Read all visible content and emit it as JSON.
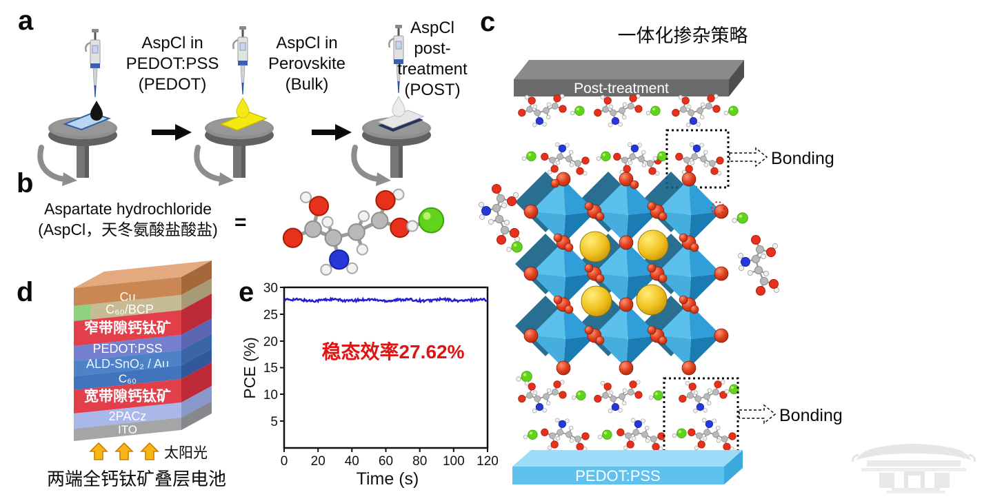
{
  "panel_a": {
    "label": "a",
    "stations": [
      {
        "line1": "AspCl in",
        "line2": "PEDOT:PSS",
        "line3": "(PEDOT)"
      },
      {
        "line1": "AspCl in",
        "line2": "Perovskite",
        "line3": "(Bulk)"
      },
      {
        "line1": "AspCl",
        "line2": "post-",
        "line3": "treatment",
        "line4": "(POST)"
      }
    ]
  },
  "panel_b": {
    "label": "b",
    "name_line1": "Aspartate hydrochloride",
    "name_line2": "(AspCl，天冬氨酸盐酸盐)",
    "equals": "="
  },
  "panel_c": {
    "label": "c",
    "title": "一体化掺杂策略",
    "top_slab": "Post-treatment",
    "bottom_slab": "PEDOT:PSS",
    "bonding_top": "Bonding",
    "bonding_bottom": "Bonding",
    "top_slab_colors": {
      "front": "#6b6b6b",
      "top": "#8a8a8a",
      "side": "#4e4e4e"
    },
    "bottom_slab_colors": {
      "front": "#5ec1ee",
      "top": "#9bdcf8",
      "side": "#3da8dc"
    },
    "octahedron_color": "#2f9ed9",
    "halide_color": "#d23a1a",
    "cation_color": "#f0c01e",
    "chloride_color": "#58cf16"
  },
  "panel_d": {
    "label": "d",
    "layers": [
      {
        "label": "Cu",
        "front": "#c98753",
        "side": "#a5683a",
        "top": "#e2aa7e",
        "text": "#ffffff"
      },
      {
        "label": "C₆₀/BCP",
        "front": "#c6bb94",
        "side": "#a69b75",
        "text": "#ffffff"
      },
      {
        "label": "窄带隙钙钛矿",
        "front": "#e33f4b",
        "side": "#bc2a37",
        "text": "#ffffff"
      },
      {
        "label": "PEDOT:PSS",
        "front": "#7480cf",
        "side": "#5b66b2",
        "text": "#ffffff"
      },
      {
        "label": "ALD-SnO₂ / Au",
        "front": "#4d82c8",
        "side": "#3a66a6",
        "text": "#eaf4ff"
      },
      {
        "label": "C₆₀",
        "front": "#4273bd",
        "side": "#32589c",
        "text": "#ffffff"
      },
      {
        "label": "宽带隙钙钛矿",
        "front": "#e33f4b",
        "side": "#bc2a37",
        "text": "#ffffff"
      },
      {
        "label": "2PACz",
        "front": "#a9b7e9",
        "side": "#8a97cb",
        "text": "#ffffff"
      },
      {
        "label": "ITO",
        "front": "#a3a5a7",
        "side": "#86888b",
        "text": "#ffffff"
      }
    ],
    "sunlight": "太阳光",
    "sun_arrow_color": "#f6b616",
    "caption": "两端全钙钛矿叠层电池"
  },
  "panel_e": {
    "label": "e"
  },
  "chart_data": {
    "type": "line",
    "title": "",
    "xlabel": "Time (s)",
    "ylabel": "PCE (%)",
    "xlim": [
      0,
      120
    ],
    "ylim": [
      0,
      30
    ],
    "xticks": [
      0,
      20,
      40,
      60,
      80,
      100,
      120
    ],
    "yticks": [
      5,
      10,
      15,
      20,
      25,
      30
    ],
    "grid": false,
    "legend": "none",
    "series": [
      {
        "name": "Stabilized PCE",
        "steady_value": 27.62,
        "x_start": 0,
        "x_end": 120,
        "color": "#2222cc"
      }
    ],
    "annotation": "稳态效率27.62%",
    "annotation_color": "#e01212"
  }
}
